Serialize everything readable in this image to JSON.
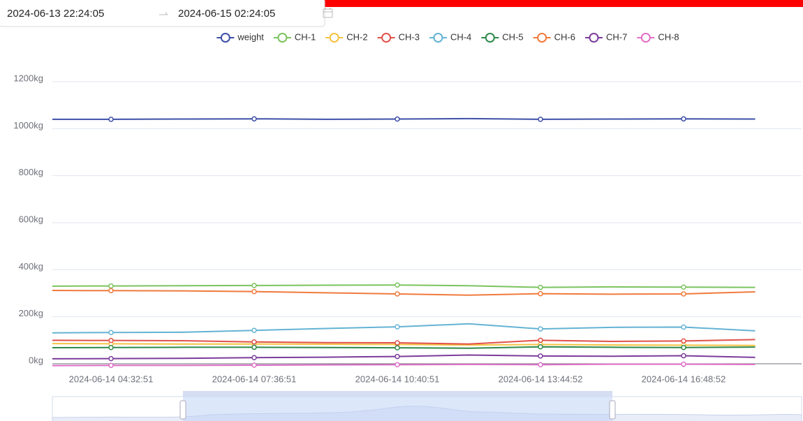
{
  "date_range": {
    "start": "2024-06-13 22:24:05",
    "end": "2024-06-15 02:24:05"
  },
  "chart_data": {
    "type": "line",
    "categories": [
      null,
      "2024-06-14 04:32:51",
      null,
      "2024-06-14 07:36:51",
      null,
      "2024-06-14 10:40:51",
      null,
      "2024-06-14 13:44:52",
      null,
      "2024-06-14 16:48:52",
      null
    ],
    "ylim": [
      0,
      1200
    ],
    "yticks": [
      {
        "value": 0,
        "label": "0kg"
      },
      {
        "value": 200,
        "label": "200kg"
      },
      {
        "value": 400,
        "label": "400kg"
      },
      {
        "value": 600,
        "label": "600kg"
      },
      {
        "value": 800,
        "label": "800kg"
      },
      {
        "value": 1000,
        "label": "1000kg"
      },
      {
        "value": 1200,
        "label": "1200kg"
      }
    ],
    "grid": true,
    "legend": "top",
    "series": [
      {
        "name": "weight",
        "color": "#3d4fa8",
        "values": [
          1040,
          1040,
          1041,
          1042,
          1040,
          1041,
          1043,
          1040,
          1041,
          1042,
          1041
        ]
      },
      {
        "name": "CH-1",
        "color": "#7cc35f",
        "values": [
          330,
          331,
          332,
          333,
          334,
          335,
          332,
          325,
          327,
          326,
          325
        ]
      },
      {
        "name": "CH-2",
        "color": "#f5c342",
        "values": [
          86,
          85,
          84,
          84,
          83,
          82,
          80,
          82,
          80,
          79,
          78
        ]
      },
      {
        "name": "CH-3",
        "color": "#e0514a",
        "values": [
          100,
          99,
          98,
          93,
          90,
          89,
          84,
          100,
          95,
          97,
          103
        ]
      },
      {
        "name": "CH-4",
        "color": "#64b3d4",
        "values": [
          131,
          133,
          134,
          142,
          150,
          157,
          170,
          148,
          155,
          156,
          140
        ]
      },
      {
        "name": "CH-5",
        "color": "#2f8a4a",
        "values": [
          68,
          69,
          70,
          70,
          69,
          68,
          66,
          72,
          70,
          69,
          71
        ]
      },
      {
        "name": "CH-6",
        "color": "#f07a3c",
        "values": [
          312,
          311,
          310,
          307,
          302,
          297,
          292,
          298,
          296,
          297,
          306
        ]
      },
      {
        "name": "CH-7",
        "color": "#7b3d9b",
        "values": [
          21,
          22,
          23,
          26,
          28,
          31,
          37,
          33,
          32,
          34,
          27
        ]
      },
      {
        "name": "CH-8",
        "color": "#e070c8",
        "values": [
          -8,
          -7,
          -7,
          -6,
          -5,
          -4,
          -3,
          -4,
          -2,
          -2,
          -3
        ]
      }
    ]
  }
}
